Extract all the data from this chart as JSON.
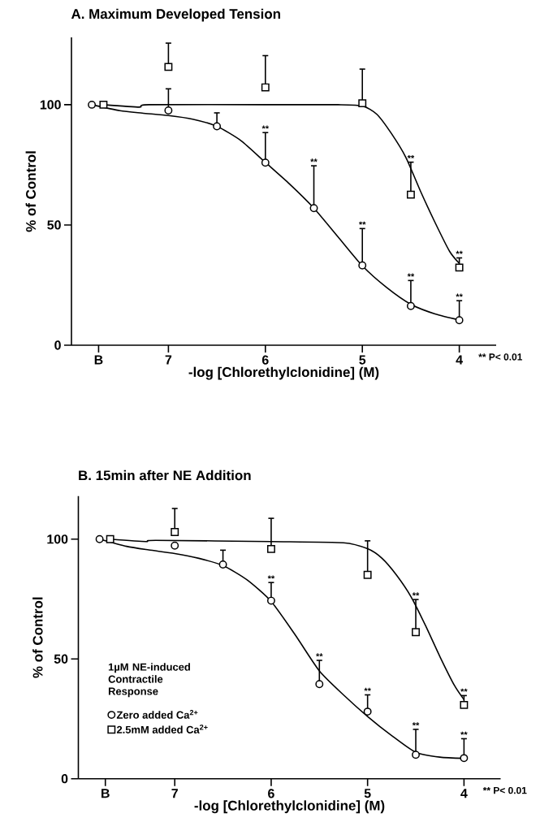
{
  "chart_data": [
    {
      "type": "scatter",
      "title": "A. Maximum Developed Tension",
      "xlabel": "-log [Chlorethylclonidine] (M)",
      "ylabel": "% of Control",
      "xlim": [
        8.0,
        3.62
      ],
      "ylim": [
        0,
        128
      ],
      "xticks": [
        {
          "value": 7.72,
          "label": "B"
        },
        7,
        6,
        5,
        4
      ],
      "yticks": [
        0,
        50,
        100
      ],
      "legend": false,
      "series": [
        {
          "type": "line",
          "color": "#000000",
          "marker": "none",
          "x": [
            7.79,
            7.5,
            7.27,
            7,
            6.75,
            6.5,
            6.25,
            6,
            5.75,
            5.5,
            5.25,
            5,
            4.75,
            4.5,
            4.25,
            4
          ],
          "values": [
            100,
            97.5,
            96.5,
            95.5,
            94,
            91,
            85,
            76,
            67,
            57,
            45,
            33,
            24,
            17,
            13,
            10.5
          ]
        },
        {
          "type": "line",
          "color": "#000000",
          "marker": "none",
          "x": [
            7.67,
            7.3,
            7.2,
            6,
            5.25,
            5,
            4.85,
            4.7,
            4.55,
            4.4,
            4.25,
            4.1,
            4
          ],
          "values": [
            100,
            99,
            100,
            100,
            100,
            99.5,
            96,
            88,
            78,
            64,
            51,
            39,
            34
          ]
        },
        {
          "color": "#000000",
          "marker": "circle",
          "x": [
            7.79,
            7,
            6.5,
            6,
            5.5,
            5,
            4.5,
            4
          ],
          "values": [
            100,
            97.6,
            91.0,
            75.9,
            57.0,
            33.2,
            16.3,
            10.4
          ],
          "errors": [
            null,
            [
              97.6,
              106.6
            ],
            [
              91.0,
              96.6
            ],
            [
              75.9,
              88.4
            ],
            [
              57.0,
              74.6
            ],
            [
              33.2,
              48.5
            ],
            [
              16.3,
              26.9
            ],
            [
              10.4,
              18.5
            ]
          ]
        },
        {
          "color": "#000000",
          "marker": "square",
          "x": [
            7.67,
            7,
            6,
            5,
            4.5,
            4
          ],
          "values": [
            100,
            115.7,
            107.2,
            100.6,
            62.6,
            32.3
          ],
          "errors": [
            null,
            [
              115.7,
              125.6
            ],
            [
              107.2,
              120.4
            ],
            [
              100.6,
              114.8
            ],
            [
              62.6,
              76.1
            ],
            [
              32.3,
              36.3
            ]
          ]
        }
      ],
      "annotations": [
        {
          "text": "**",
          "x": 6,
          "y": 88.4
        },
        {
          "text": "**",
          "x": 5.5,
          "y": 74.6
        },
        {
          "text": "**",
          "x": 5,
          "y": 48.5
        },
        {
          "text": "**",
          "x": 4.5,
          "y": 26.9
        },
        {
          "text": "**",
          "x": 4,
          "y": 18.5
        },
        {
          "text": "**",
          "x": 4.5,
          "y": 76.1
        },
        {
          "text": "**",
          "x": 4,
          "y": 36.3
        },
        "** P< 0.01"
      ]
    },
    {
      "type": "scatter",
      "title": "B. 15min after NE Addition",
      "xlabel": "-log [Chlorethylclonidine] (M)",
      "ylabel": "% of Control",
      "xlim": [
        8.0,
        3.62
      ],
      "ylim": [
        0,
        118
      ],
      "xticks": [
        {
          "value": 7.72,
          "label": "B"
        },
        7,
        6,
        5,
        4
      ],
      "yticks": [
        0,
        50,
        100
      ],
      "legend": "bottom left",
      "legend_title": "1µM NE-induced Contractile Response",
      "series": [
        {
          "type": "line",
          "color": "#000000",
          "marker": "none",
          "x": [
            7.78,
            7.5,
            7.27,
            7,
            6.75,
            6.5,
            6.25,
            6,
            5.75,
            5.5,
            5.25,
            5,
            4.75,
            4.5,
            4.25,
            4
          ],
          "values": [
            100,
            97,
            95.5,
            94,
            92,
            89,
            83,
            74,
            60,
            45,
            35,
            26,
            18,
            11,
            9,
            8.5
          ]
        },
        {
          "type": "line",
          "color": "#000000",
          "marker": "none",
          "x": [
            7.67,
            7.3,
            7.2,
            6,
            5.25,
            5,
            4.85,
            4.7,
            4.55,
            4.4,
            4.25,
            4.1,
            4
          ],
          "values": [
            100,
            99,
            99.5,
            99,
            98.5,
            96,
            92,
            85,
            76,
            64,
            51,
            39,
            33
          ]
        },
        {
          "name": "Zero added Ca$^{2+}$",
          "color": "#000000",
          "marker": "circle",
          "x": [
            7.78,
            7,
            6.5,
            6,
            5.5,
            5,
            4.5,
            4
          ],
          "values": [
            100,
            97.3,
            89.4,
            74.3,
            39.5,
            28.0,
            10.0,
            8.6
          ],
          "errors": [
            null,
            null,
            [
              89.4,
              95.4
            ],
            [
              74.3,
              81.9
            ],
            [
              39.5,
              49.4
            ],
            [
              28.0,
              35.0
            ],
            [
              10.0,
              20.6
            ],
            [
              8.6,
              16.7
            ]
          ]
        },
        {
          "name": "2.5mM added Ca$^{2+}$",
          "color": "#000000",
          "marker": "square",
          "x": [
            7.67,
            7,
            6,
            5,
            4.5,
            4
          ],
          "values": [
            100,
            103.0,
            95.9,
            85.1,
            61.2,
            30.8
          ],
          "errors": [
            null,
            [
              103.0,
              112.8
            ],
            [
              95.9,
              108.7
            ],
            [
              85.1,
              99.3
            ],
            [
              61.2,
              74.8
            ],
            [
              30.8,
              34.7
            ]
          ]
        }
      ],
      "annotations": [
        {
          "text": "**",
          "x": 6,
          "y": 81.9
        },
        {
          "text": "**",
          "x": 5.5,
          "y": 49.4
        },
        {
          "text": "**",
          "x": 5,
          "y": 35.0
        },
        {
          "text": "**",
          "x": 4.5,
          "y": 20.6
        },
        {
          "text": "**",
          "x": 4,
          "y": 16.7
        },
        {
          "text": "**",
          "x": 4.5,
          "y": 74.8
        },
        {
          "text": "**",
          "x": 4,
          "y": 34.7
        },
        "** P< 0.01"
      ]
    }
  ]
}
